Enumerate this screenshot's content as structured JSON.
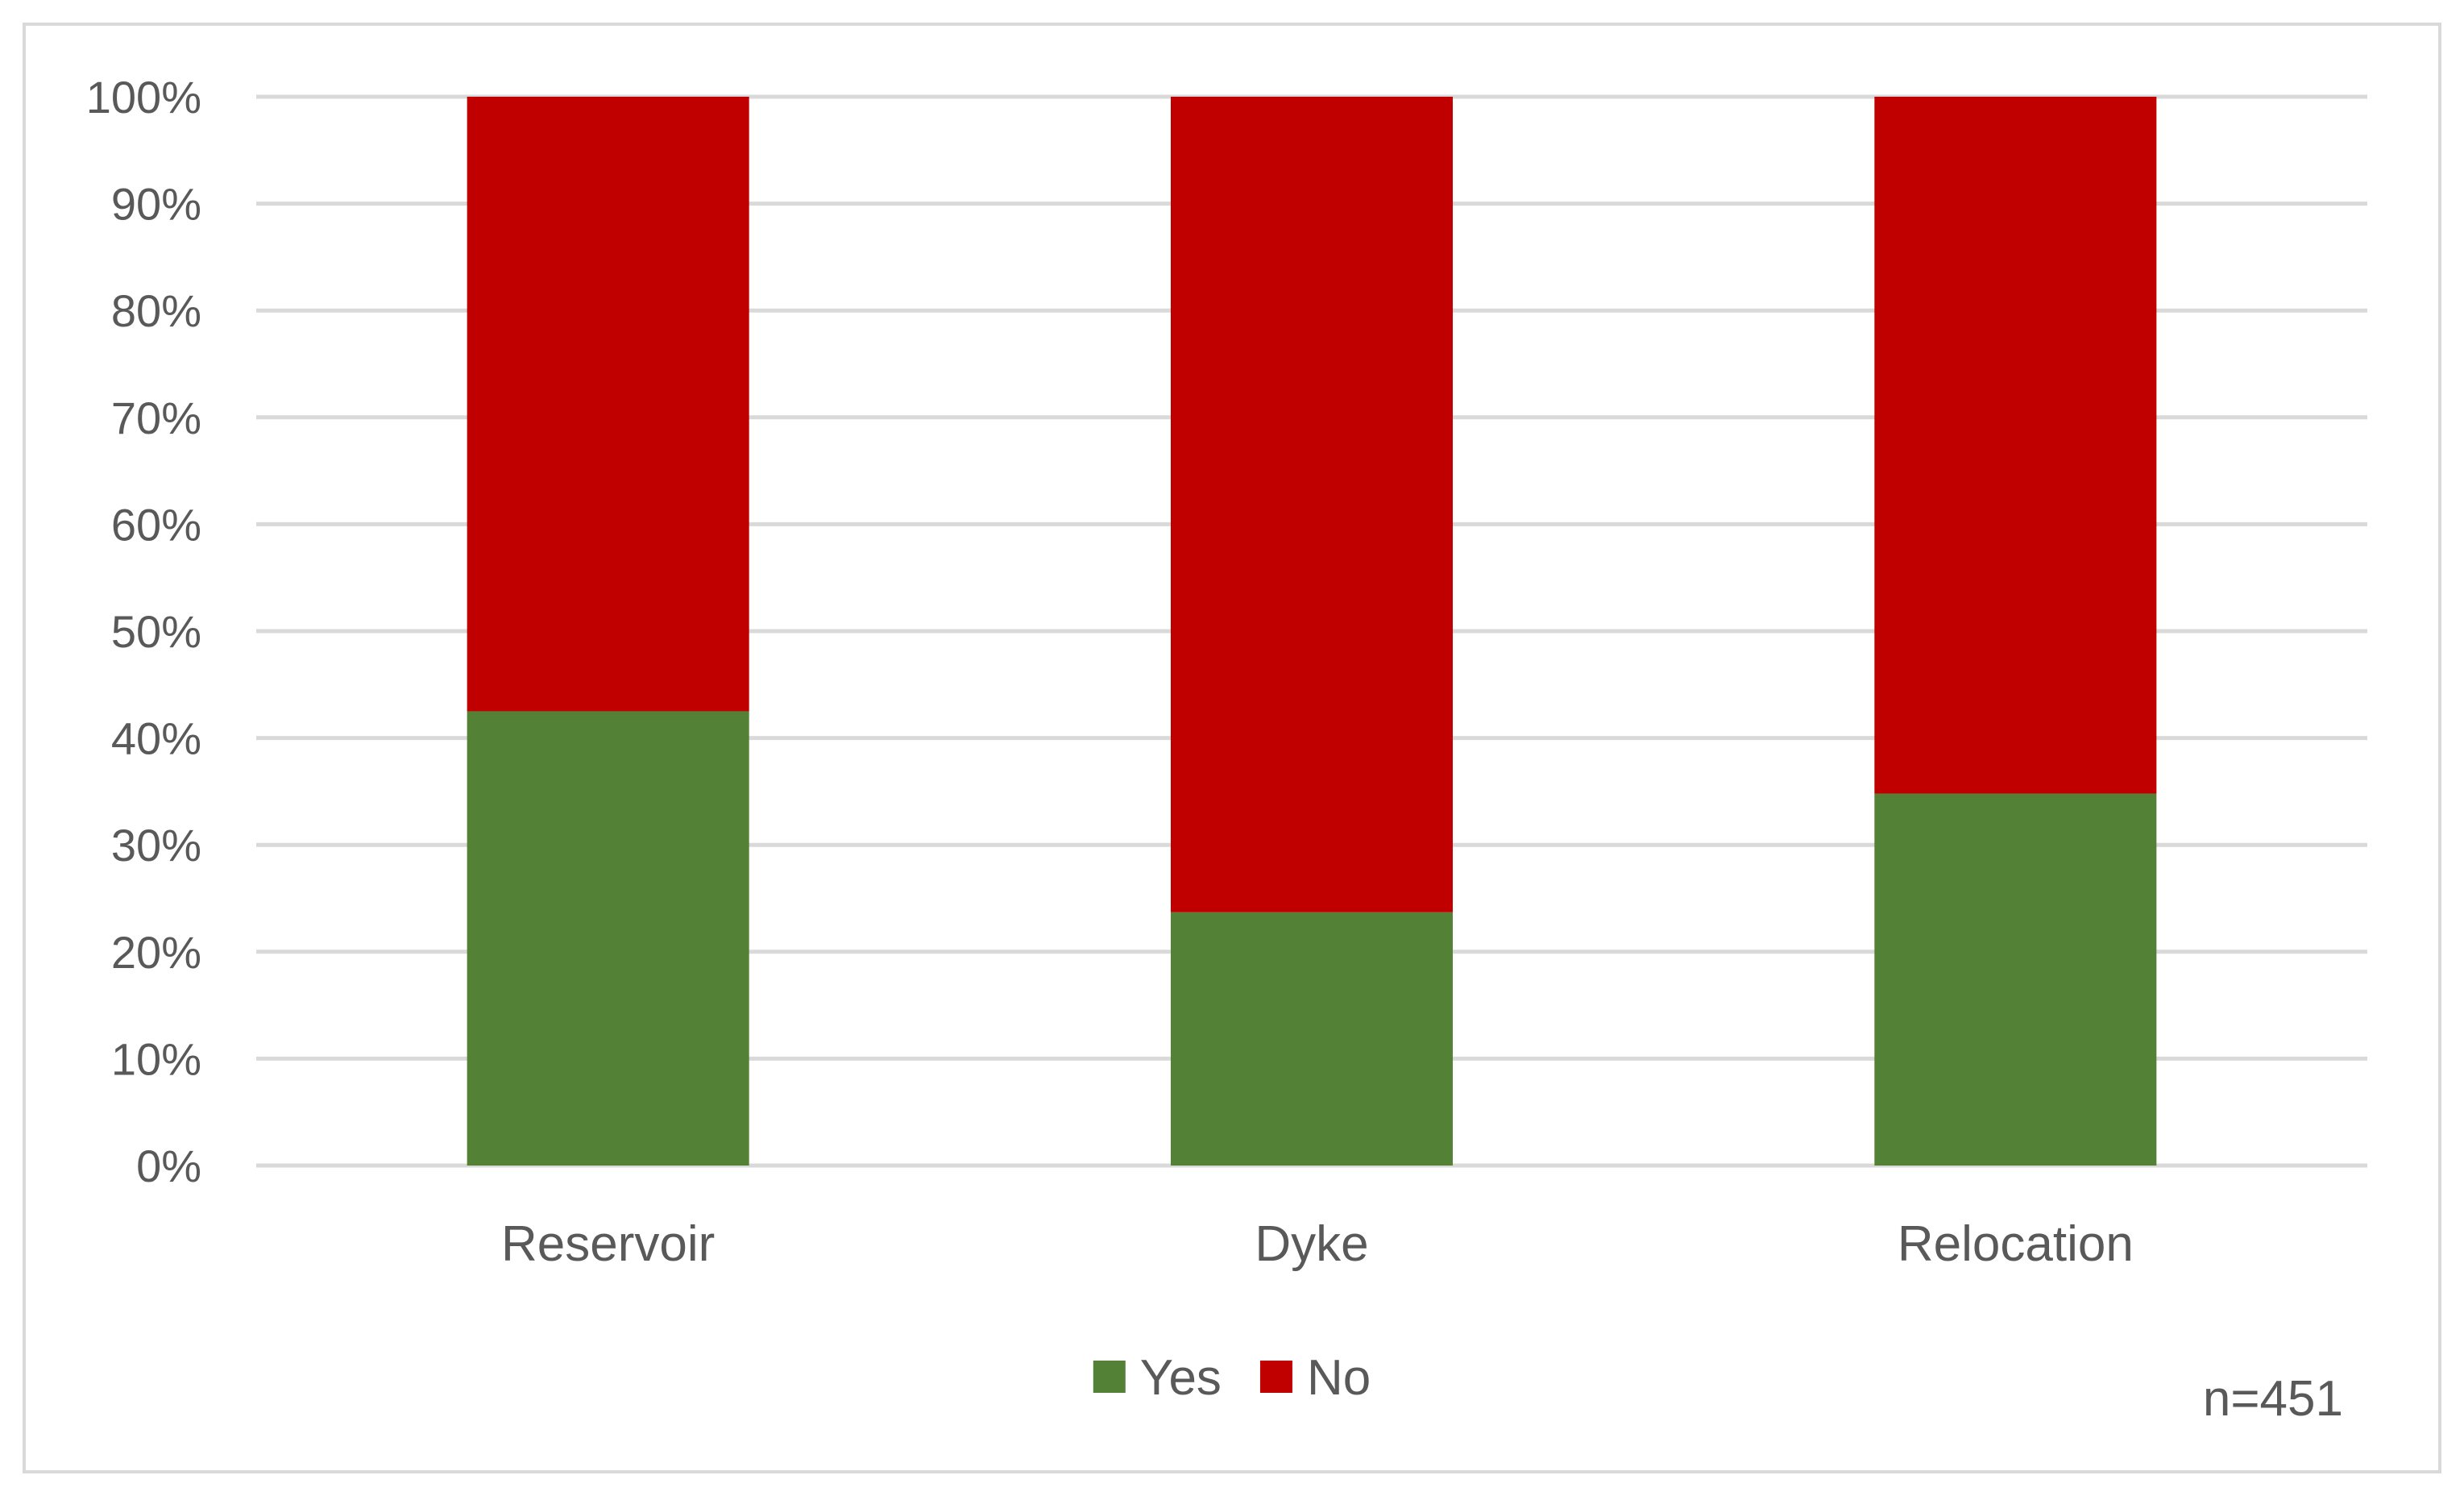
{
  "chart_data": {
    "type": "bar",
    "stacked": true,
    "percent_stacked": true,
    "categories": [
      "Reservoir",
      "Dyke",
      "Relocation"
    ],
    "series": [
      {
        "name": "Yes",
        "values": [
          42.5,
          23.7,
          34.8
        ],
        "color": "#538135"
      },
      {
        "name": "No",
        "values": [
          57.5,
          76.3,
          65.2
        ],
        "color": "#c00000"
      }
    ],
    "ylim": [
      0,
      100
    ],
    "yticks": [
      "0%",
      "10%",
      "20%",
      "30%",
      "40%",
      "50%",
      "60%",
      "70%",
      "80%",
      "90%",
      "100%"
    ],
    "grid": true,
    "legend_position": "bottom",
    "annotation": "n=451",
    "gridline_color": "#d9d9d9"
  }
}
